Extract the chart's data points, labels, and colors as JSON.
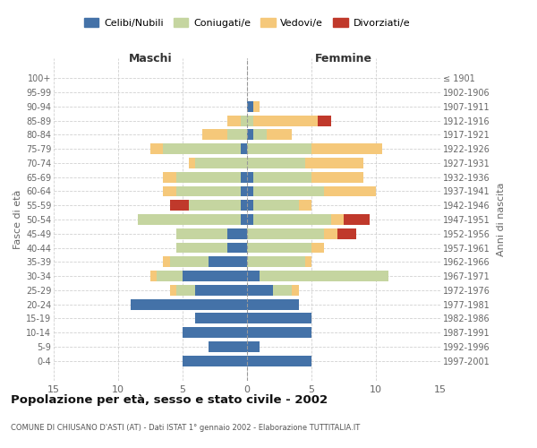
{
  "age_groups": [
    "0-4",
    "5-9",
    "10-14",
    "15-19",
    "20-24",
    "25-29",
    "30-34",
    "35-39",
    "40-44",
    "45-49",
    "50-54",
    "55-59",
    "60-64",
    "65-69",
    "70-74",
    "75-79",
    "80-84",
    "85-89",
    "90-94",
    "95-99",
    "100+"
  ],
  "birth_years": [
    "1997-2001",
    "1992-1996",
    "1987-1991",
    "1982-1986",
    "1977-1981",
    "1972-1976",
    "1967-1971",
    "1962-1966",
    "1957-1961",
    "1952-1956",
    "1947-1951",
    "1942-1946",
    "1937-1941",
    "1932-1936",
    "1927-1931",
    "1922-1926",
    "1917-1921",
    "1912-1916",
    "1907-1911",
    "1902-1906",
    "≤ 1901"
  ],
  "maschi": {
    "celibi": [
      5,
      3,
      5,
      4,
      9,
      4,
      5,
      3,
      1.5,
      1.5,
      0.5,
      0.5,
      0.5,
      0.5,
      0,
      0.5,
      0,
      0,
      0,
      0,
      0
    ],
    "coniugati": [
      0,
      0,
      0,
      0,
      0,
      1.5,
      2,
      3,
      4,
      4,
      8,
      4,
      5,
      5,
      4,
      6,
      1.5,
      0.5,
      0,
      0,
      0
    ],
    "vedovi": [
      0,
      0,
      0,
      0,
      0,
      0.5,
      0.5,
      0.5,
      0,
      0,
      0,
      0,
      1,
      1,
      0.5,
      1,
      2,
      1,
      0,
      0,
      0
    ],
    "divorziati": [
      0,
      0,
      0,
      0,
      0,
      0,
      0,
      0,
      0,
      0,
      0,
      1.5,
      0,
      0,
      0,
      0,
      0,
      0,
      0,
      0,
      0
    ]
  },
  "femmine": {
    "nubili": [
      5,
      1,
      5,
      5,
      4,
      2,
      1,
      0,
      0,
      0,
      0.5,
      0.5,
      0.5,
      0.5,
      0,
      0,
      0.5,
      0,
      0.5,
      0,
      0
    ],
    "coniugate": [
      0,
      0,
      0,
      0,
      0,
      1.5,
      10,
      4.5,
      5,
      6,
      6,
      3.5,
      5.5,
      4.5,
      4.5,
      5,
      1,
      0.5,
      0,
      0,
      0
    ],
    "vedove": [
      0,
      0,
      0,
      0,
      0,
      0.5,
      0,
      0.5,
      1,
      1,
      1,
      1,
      4,
      4,
      4.5,
      5.5,
      2,
      5,
      0.5,
      0,
      0
    ],
    "divorziate": [
      0,
      0,
      0,
      0,
      0,
      0,
      0,
      0,
      0,
      1.5,
      2,
      0,
      0,
      0,
      0,
      0,
      0,
      1,
      0,
      0,
      0
    ]
  },
  "colors": {
    "celibi_nubili": "#4472a8",
    "coniugati": "#c5d5a0",
    "vedovi": "#f5c87a",
    "divorziati": "#c0392b"
  },
  "title": "Popolazione per età, sesso e stato civile - 2002",
  "subtitle": "COMUNE DI CHIUSANO D'ASTI (AT) - Dati ISTAT 1° gennaio 2002 - Elaborazione TUTTITALIA.IT",
  "xlabel_left": "Maschi",
  "xlabel_right": "Femmine",
  "ylabel_left": "Fasce di età",
  "ylabel_right": "Anni di nascita",
  "xlim": 15,
  "legend_labels": [
    "Celibi/Nubili",
    "Coniugati/e",
    "Vedovi/e",
    "Divorziati/e"
  ],
  "bg_color": "#ffffff",
  "grid_color": "#cccccc",
  "bar_height": 0.75
}
